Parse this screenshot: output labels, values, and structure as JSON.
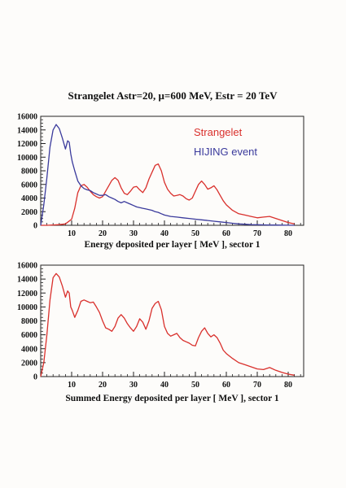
{
  "title": "Strangelet Astr=20, μ=600 MeV, Estr = 20 TeV",
  "colors": {
    "strangelet": "#d9302c",
    "hijing": "#3a3a9c",
    "frame": "#222222"
  },
  "chart_data": [
    {
      "type": "line",
      "xlabel": "Energy deposited per layer [ MeV ], sector 1",
      "ylabel": "",
      "xlim": [
        0,
        85
      ],
      "ylim": [
        0,
        16000
      ],
      "xticks": [
        10,
        20,
        30,
        40,
        50,
        60,
        70,
        80
      ],
      "yticks": [
        0,
        2000,
        4000,
        6000,
        8000,
        10000,
        12000,
        14000,
        16000
      ],
      "grid": false,
      "legend": "top-right",
      "series": [
        {
          "name": "Strangelet",
          "color": "#d9302c",
          "x": [
            0,
            2,
            4,
            6,
            8,
            10,
            11,
            12,
            13,
            14,
            15,
            16,
            17,
            18,
            19,
            20,
            21,
            22,
            23,
            24,
            25,
            26,
            27,
            28,
            29,
            30,
            31,
            32,
            33,
            34,
            35,
            36,
            37,
            38,
            39,
            40,
            41,
            42,
            43,
            44,
            45,
            46,
            47,
            48,
            49,
            50,
            51,
            52,
            53,
            54,
            55,
            56,
            57,
            58,
            59,
            60,
            62,
            64,
            66,
            68,
            70,
            72,
            74,
            76,
            78,
            80,
            82
          ],
          "y": [
            0,
            0,
            50,
            100,
            200,
            900,
            2500,
            4800,
            5800,
            6000,
            5600,
            5000,
            4500,
            4200,
            4000,
            4200,
            5000,
            5800,
            6600,
            7000,
            6600,
            5500,
            4700,
            4500,
            5000,
            5600,
            5700,
            5200,
            4800,
            5500,
            6800,
            7800,
            8800,
            9000,
            8000,
            6300,
            5300,
            4700,
            4300,
            4400,
            4500,
            4300,
            3900,
            3700,
            4000,
            5000,
            6000,
            6500,
            6000,
            5300,
            5500,
            5800,
            5200,
            4400,
            3600,
            3000,
            2200,
            1700,
            1500,
            1300,
            1100,
            1200,
            1300,
            1000,
            700,
            400,
            200
          ]
        },
        {
          "name": "HIJING event",
          "color": "#3a3a9c",
          "x": [
            0,
            1,
            2,
            3,
            4,
            5,
            6,
            7,
            8,
            8.7,
            9.2,
            9.7,
            10.2,
            11,
            12,
            13,
            14,
            15,
            16,
            17,
            18,
            19,
            20,
            21,
            22,
            23,
            24,
            25,
            26,
            27,
            28,
            29,
            30,
            31,
            32,
            33,
            34,
            35,
            36,
            37,
            38,
            39,
            40,
            42,
            44,
            46,
            48,
            50,
            52,
            54,
            56,
            58,
            60,
            62,
            64,
            66,
            68,
            70,
            72,
            74,
            76,
            78,
            80,
            82
          ],
          "y": [
            0,
            3000,
            7000,
            11500,
            14000,
            14800,
            14200,
            12800,
            11200,
            12400,
            12200,
            10500,
            9300,
            8000,
            6500,
            5800,
            5400,
            5200,
            5100,
            4800,
            4600,
            4400,
            4400,
            4500,
            4200,
            4000,
            3800,
            3500,
            3300,
            3500,
            3300,
            3100,
            2900,
            2700,
            2600,
            2500,
            2400,
            2300,
            2200,
            2000,
            1900,
            1700,
            1500,
            1300,
            1200,
            1100,
            1000,
            900,
            800,
            700,
            600,
            500,
            400,
            300,
            200,
            150,
            100,
            80,
            60,
            40,
            30,
            20,
            10,
            0
          ]
        }
      ]
    },
    {
      "type": "line",
      "xlabel": "Summed Energy deposited per layer [ MeV ], sector 1",
      "ylabel": "",
      "xlim": [
        0,
        85
      ],
      "ylim": [
        0,
        16000
      ],
      "xticks": [
        10,
        20,
        30,
        40,
        50,
        60,
        70,
        80
      ],
      "yticks": [
        0,
        2000,
        4000,
        6000,
        8000,
        10000,
        12000,
        14000,
        16000
      ],
      "grid": false,
      "series": [
        {
          "color": "#d9302c",
          "x": [
            0,
            1,
            2,
            3,
            4,
            5,
            6,
            7,
            8,
            8.7,
            9.2,
            9.7,
            10.2,
            11,
            12,
            13,
            14,
            15,
            16,
            17,
            18,
            19,
            20,
            21,
            22,
            23,
            24,
            25,
            26,
            27,
            28,
            29,
            30,
            31,
            32,
            33,
            34,
            35,
            36,
            37,
            38,
            39,
            40,
            41,
            42,
            43,
            44,
            45,
            46,
            47,
            48,
            49,
            50,
            51,
            52,
            53,
            54,
            55,
            56,
            57,
            58,
            59,
            60,
            62,
            64,
            66,
            68,
            70,
            72,
            74,
            76,
            78,
            80,
            82
          ],
          "y": [
            0,
            2000,
            6000,
            11000,
            14200,
            14800,
            14300,
            13000,
            11400,
            12300,
            12000,
            10000,
            9500,
            8500,
            9500,
            10800,
            11000,
            10800,
            10600,
            10700,
            10000,
            9200,
            8000,
            7000,
            6800,
            6500,
            7200,
            8400,
            8900,
            8400,
            7600,
            7000,
            6500,
            7200,
            8300,
            7800,
            6800,
            8000,
            9800,
            10500,
            10800,
            9600,
            7200,
            6200,
            5800,
            6000,
            6200,
            5600,
            5200,
            5000,
            4800,
            4500,
            4400,
            5600,
            6500,
            7000,
            6200,
            5700,
            6000,
            5600,
            4800,
            3800,
            3300,
            2600,
            2000,
            1700,
            1400,
            1100,
            1000,
            1300,
            900,
            600,
            350,
            200
          ]
        }
      ]
    }
  ]
}
